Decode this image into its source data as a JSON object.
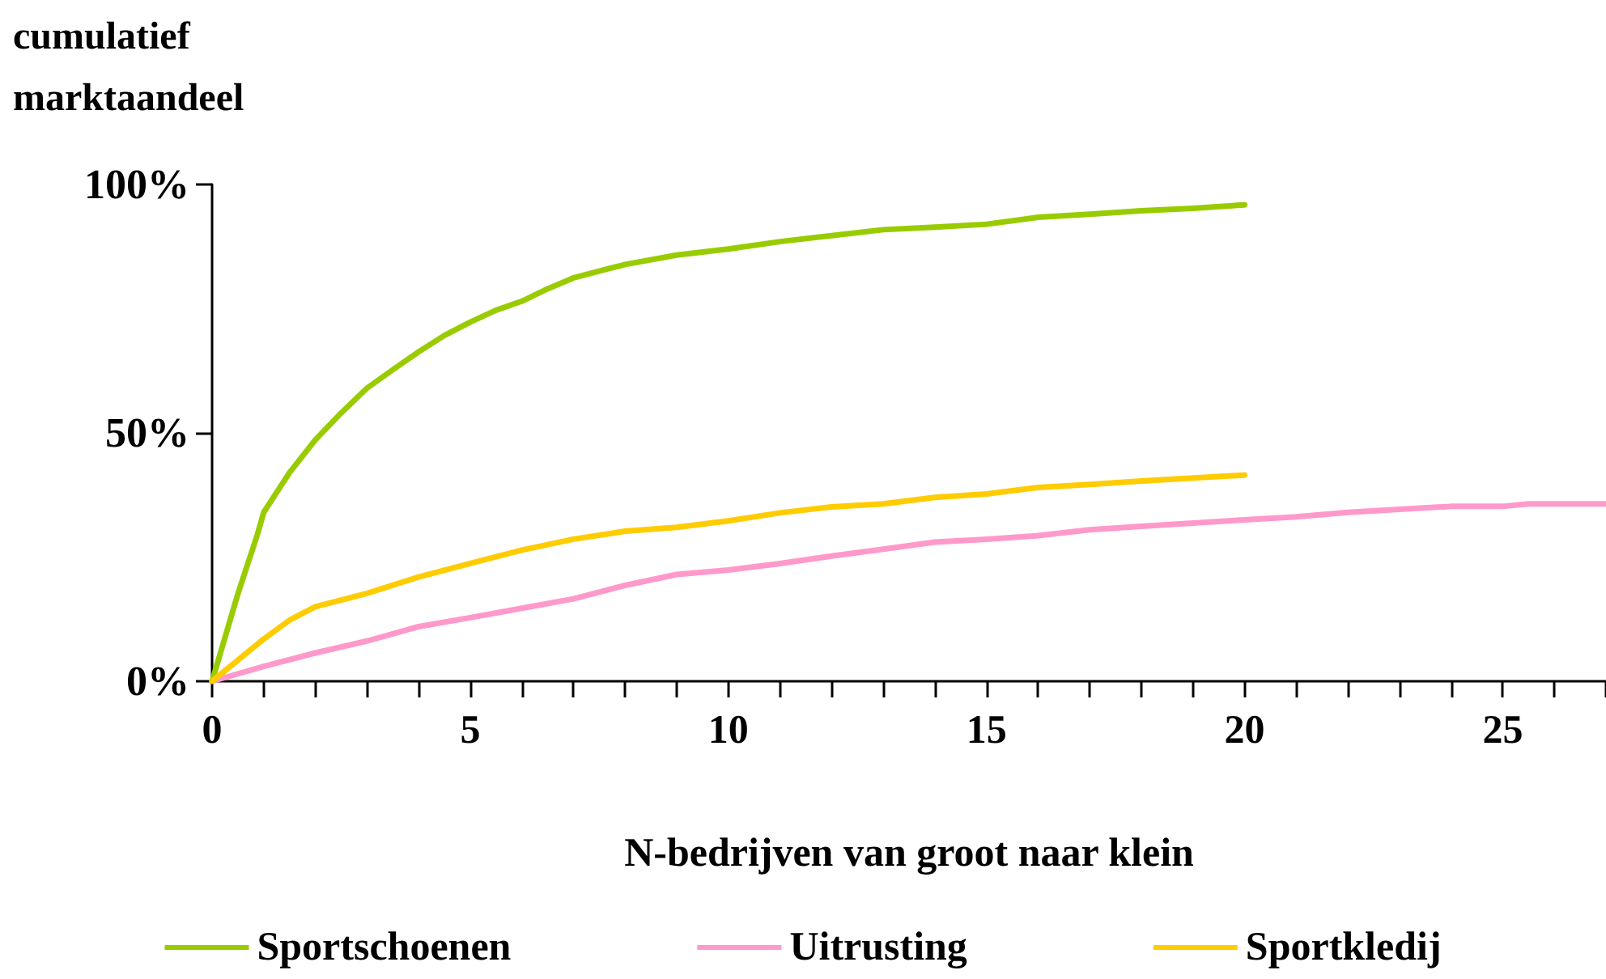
{
  "chart_data": {
    "type": "line",
    "ylabel": "cumulatief\nmarktaandeel",
    "xlabel": "N-bedrijven van groot naar klein",
    "series": [
      {
        "name": "Sportschoenen",
        "color": "#99cc00",
        "x": [
          0,
          0.5,
          0.88,
          1,
          1.5,
          2,
          2.5,
          3,
          3.5,
          4,
          4.5,
          5,
          5.5,
          6,
          6.5,
          7,
          8,
          9,
          10,
          11,
          12,
          13,
          14,
          15,
          16,
          17,
          18,
          19,
          20
        ],
        "values": [
          0,
          17.6,
          29.6,
          34,
          42,
          48.6,
          54,
          59,
          62.7,
          66.3,
          69.6,
          72.3,
          74.7,
          76.5,
          79,
          81.2,
          83.9,
          85.8,
          87,
          88.5,
          89.7,
          90.9,
          91.4,
          92,
          93.4,
          94,
          94.7,
          95.2,
          95.9
        ]
      },
      {
        "name": "Uitrusting",
        "color": "#ff99cc",
        "x": [
          0,
          1,
          2,
          3,
          4,
          5,
          6,
          7,
          8,
          9,
          10,
          11,
          12,
          13,
          14,
          15,
          16,
          17,
          18,
          20,
          21,
          22,
          23,
          24,
          25,
          25.5,
          27
        ],
        "values": [
          0,
          3,
          5.7,
          8.1,
          11,
          12.8,
          14.7,
          16.6,
          19.3,
          21.5,
          22.4,
          23.7,
          25.2,
          26.6,
          28,
          28.6,
          29.3,
          30.5,
          31.2,
          32.5,
          33.1,
          34,
          34.6,
          35.2,
          35.2,
          35.7,
          35.7
        ]
      },
      {
        "name": "Sportkledij",
        "color": "#ffcc00",
        "x": [
          0,
          1,
          1.5,
          2,
          3,
          4,
          5,
          6,
          7,
          8,
          9,
          10,
          11,
          12,
          13,
          14,
          15,
          16,
          17,
          18,
          20
        ],
        "values": [
          0,
          8.5,
          12.3,
          15,
          17.7,
          21,
          23.7,
          26.4,
          28.6,
          30.2,
          31,
          32.3,
          33.9,
          35.1,
          35.7,
          37,
          37.7,
          39,
          39.6,
          40.3,
          41.5
        ]
      }
    ],
    "xlim": [
      0,
      27
    ],
    "xticks": [
      0,
      {
        "value": 1,
        "label": null
      },
      {
        "value": 2,
        "label": null
      },
      {
        "value": 3,
        "label": null
      },
      {
        "value": 4,
        "label": null
      },
      5,
      {
        "value": 6,
        "label": null
      },
      {
        "value": 7,
        "label": null
      },
      {
        "value": 8,
        "label": null
      },
      {
        "value": 9,
        "label": null
      },
      10,
      {
        "value": 11,
        "label": null
      },
      {
        "value": 12,
        "label": null
      },
      {
        "value": 13,
        "label": null
      },
      {
        "value": 14,
        "label": null
      },
      15,
      {
        "value": 16,
        "label": null
      },
      {
        "value": 17,
        "label": null
      },
      {
        "value": 18,
        "label": null
      },
      {
        "value": 19,
        "label": null
      },
      20,
      {
        "value": 21,
        "label": null
      },
      {
        "value": 22,
        "label": null
      },
      {
        "value": 23,
        "label": null
      },
      {
        "value": 24,
        "label": null
      },
      25,
      {
        "value": 26,
        "label": null
      },
      {
        "value": 27,
        "label": null
      }
    ],
    "ylim": [
      0,
      100
    ],
    "yticks": [
      {
        "value": 0,
        "label": "0%"
      },
      {
        "value": 50,
        "label": "50%"
      },
      {
        "value": 100,
        "label": "100%"
      }
    ],
    "grid": false,
    "legend": "bottom",
    "marker": "none",
    "line_style": "solid"
  }
}
